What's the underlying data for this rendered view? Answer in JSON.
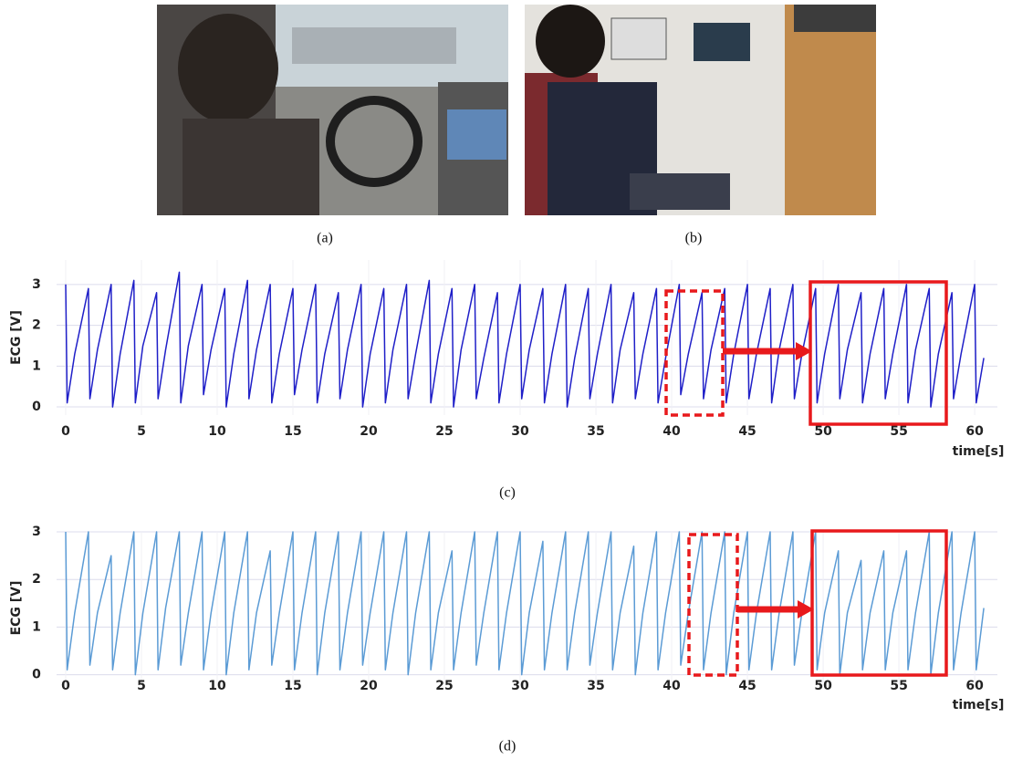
{
  "figures": [
    {
      "caption": "(a)"
    },
    {
      "caption": "(b)"
    }
  ],
  "chart_data": [
    {
      "type": "line",
      "caption": "(c)",
      "y_label": "ECG [V]",
      "x_label": "time[s]",
      "grid": true,
      "xlim": [
        -0.6,
        61.5
      ],
      "ylim": [
        -0.2,
        3.6
      ],
      "xticks": [
        0,
        5,
        10,
        15,
        20,
        25,
        30,
        35,
        40,
        45,
        50,
        55,
        60
      ],
      "yticks": [
        0,
        1,
        2,
        3
      ],
      "x": [
        0,
        0.1,
        0.6,
        1.5,
        1.6,
        2.1,
        3,
        3.1,
        3.6,
        4.5,
        4.6,
        5.1,
        6,
        6.1,
        6.6,
        7.5,
        7.6,
        8.1,
        9,
        9.1,
        9.6,
        10.5,
        10.6,
        11.1,
        12,
        12.1,
        12.6,
        13.5,
        13.6,
        14.1,
        15,
        15.1,
        15.6,
        16.5,
        16.6,
        17.1,
        18,
        18.1,
        18.6,
        19.5,
        19.6,
        20.1,
        21,
        21.1,
        21.6,
        22.5,
        22.6,
        23.1,
        24,
        24.1,
        24.6,
        25.5,
        25.6,
        26.1,
        27,
        27.1,
        27.6,
        28.5,
        28.6,
        29.1,
        30,
        30.1,
        30.6,
        31.5,
        31.6,
        32.1,
        33,
        33.1,
        33.6,
        34.5,
        34.6,
        35.1,
        36,
        36.1,
        36.6,
        37.5,
        37.6,
        38.1,
        39,
        39.1,
        39.6,
        40.5,
        40.6,
        41.1,
        42,
        42.1,
        42.6,
        43.5,
        43.6,
        44.1,
        45,
        45.1,
        45.6,
        46.5,
        46.6,
        47.1,
        48,
        48.1,
        48.6,
        49.5,
        49.6,
        50.1,
        51,
        51.1,
        51.6,
        52.5,
        52.6,
        53.1,
        54,
        54.1,
        54.6,
        55.5,
        55.6,
        56.1,
        57,
        57.1,
        57.6,
        58.5,
        58.6,
        59.1,
        60,
        60.1,
        60.6
      ],
      "series": [
        {
          "color": "#1f1fc8",
          "values": [
            3.0,
            0.1,
            1.3,
            2.9,
            0.2,
            1.4,
            3.0,
            0.0,
            1.3,
            3.1,
            0.1,
            1.5,
            2.8,
            0.2,
            1.4,
            3.3,
            0.1,
            1.5,
            3.0,
            0.3,
            1.4,
            2.9,
            0.0,
            1.3,
            3.1,
            0.2,
            1.4,
            3.0,
            0.1,
            1.3,
            2.9,
            0.3,
            1.4,
            3.0,
            0.1,
            1.3,
            2.8,
            0.2,
            1.4,
            3.0,
            0.0,
            1.3,
            2.9,
            0.1,
            1.4,
            3.0,
            0.2,
            1.3,
            3.1,
            0.1,
            1.3,
            2.9,
            0.0,
            1.4,
            3.0,
            0.2,
            1.2,
            2.8,
            0.1,
            1.3,
            3.0,
            0.2,
            1.4,
            2.9,
            0.1,
            1.3,
            3.0,
            0.0,
            1.2,
            2.9,
            0.2,
            1.3,
            3.0,
            0.1,
            1.4,
            2.8,
            0.2,
            1.3,
            2.9,
            0.1,
            1.2,
            3.0,
            0.3,
            1.3,
            2.8,
            0.2,
            1.4,
            2.9,
            0.1,
            1.3,
            3.0,
            0.2,
            1.3,
            2.9,
            0.1,
            1.4,
            3.0,
            0.2,
            1.3,
            2.9,
            0.1,
            1.3,
            3.0,
            0.2,
            1.4,
            2.8,
            0.1,
            1.3,
            2.9,
            0.2,
            1.3,
            3.0,
            0.1,
            1.4,
            2.9,
            0.0,
            1.3,
            2.8,
            0.2,
            1.3,
            3.0,
            0.1,
            1.2
          ]
        }
      ]
    },
    {
      "type": "line",
      "caption": "(d)",
      "y_label": "ECG [V]",
      "x_label": "time[s]",
      "grid": true,
      "xlim": [
        -0.6,
        61.5
      ],
      "ylim": [
        -0.2,
        3
      ],
      "xticks": [
        0,
        5,
        10,
        15,
        20,
        25,
        30,
        35,
        40,
        45,
        50,
        55,
        60
      ],
      "yticks": [
        0,
        1,
        2,
        3
      ],
      "x": [
        0,
        0.1,
        0.6,
        1.5,
        1.6,
        2.1,
        3,
        3.1,
        3.6,
        4.5,
        4.6,
        5.1,
        6,
        6.1,
        6.6,
        7.5,
        7.6,
        8.1,
        9,
        9.1,
        9.6,
        10.5,
        10.6,
        11.1,
        12,
        12.1,
        12.6,
        13.5,
        13.6,
        14.1,
        15,
        15.1,
        15.6,
        16.5,
        16.6,
        17.1,
        18,
        18.1,
        18.6,
        19.5,
        19.6,
        20.1,
        21,
        21.1,
        21.6,
        22.5,
        22.6,
        23.1,
        24,
        24.1,
        24.6,
        25.5,
        25.6,
        26.1,
        27,
        27.1,
        27.6,
        28.5,
        28.6,
        29.1,
        30,
        30.1,
        30.6,
        31.5,
        31.6,
        32.1,
        33,
        33.1,
        33.6,
        34.5,
        34.6,
        35.1,
        36,
        36.1,
        36.6,
        37.5,
        37.6,
        38.1,
        39,
        39.1,
        39.6,
        40.5,
        40.6,
        41.1,
        42,
        42.1,
        42.6,
        43.5,
        43.6,
        44.1,
        45,
        45.1,
        45.6,
        46.5,
        46.6,
        47.1,
        48,
        48.1,
        48.6,
        49.5,
        49.6,
        50.1,
        51,
        51.1,
        51.6,
        52.5,
        52.6,
        53.1,
        54,
        54.1,
        54.6,
        55.5,
        55.6,
        56.1,
        57,
        57.1,
        57.6,
        58.5,
        58.6,
        59.1,
        60,
        60.1,
        60.6
      ],
      "series": [
        {
          "color": "#5b9bd5",
          "values": [
            3.0,
            0.1,
            1.3,
            3.0,
            0.2,
            1.3,
            2.5,
            0.1,
            1.3,
            3.0,
            0.0,
            1.3,
            3.0,
            0.1,
            1.4,
            3.0,
            0.2,
            1.3,
            3.0,
            0.1,
            1.3,
            3.0,
            0.0,
            1.3,
            3.0,
            0.1,
            1.3,
            2.6,
            0.2,
            1.3,
            3.0,
            0.1,
            1.3,
            3.0,
            0.0,
            1.3,
            3.0,
            0.1,
            1.3,
            3.0,
            0.2,
            1.3,
            3.0,
            0.1,
            1.3,
            3.0,
            0.0,
            1.3,
            3.0,
            0.1,
            1.3,
            2.6,
            0.1,
            1.3,
            3.0,
            0.2,
            1.3,
            3.0,
            0.1,
            1.3,
            3.0,
            0.0,
            1.3,
            2.8,
            0.1,
            1.3,
            3.0,
            0.1,
            1.3,
            3.0,
            0.2,
            1.3,
            3.0,
            0.1,
            1.3,
            2.7,
            0.0,
            1.3,
            3.0,
            0.1,
            1.3,
            3.0,
            0.2,
            1.3,
            3.0,
            0.1,
            1.3,
            3.0,
            0.0,
            1.3,
            3.0,
            0.1,
            1.3,
            3.0,
            0.1,
            1.3,
            3.0,
            0.2,
            1.3,
            3.0,
            0.1,
            1.3,
            2.6,
            0.0,
            1.3,
            2.4,
            0.1,
            1.3,
            2.6,
            0.1,
            1.3,
            2.6,
            0.1,
            1.3,
            3.0,
            0.0,
            1.3,
            3.0,
            0.1,
            1.3,
            3.0,
            0.1,
            1.4
          ]
        }
      ]
    }
  ]
}
